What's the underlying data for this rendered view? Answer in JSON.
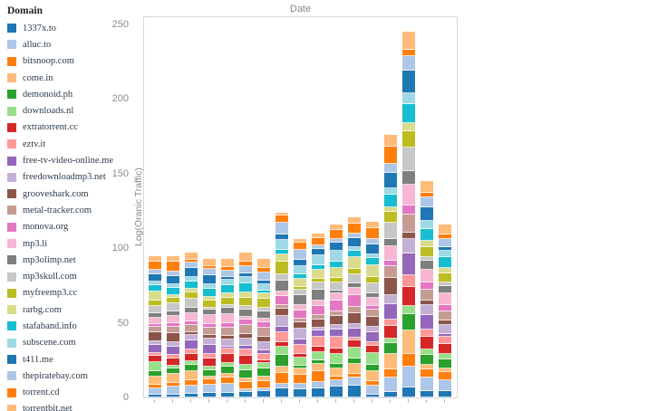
{
  "legend": {
    "title": "Domain",
    "items": [
      {
        "label": "1337x.to",
        "color": "#1f77b4"
      },
      {
        "label": "alluc.to",
        "color": "#aec7e8"
      },
      {
        "label": "bitsnoop.com",
        "color": "#ff7f0e"
      },
      {
        "label": "come.in",
        "color": "#ffbb78"
      },
      {
        "label": "demonoid.ph",
        "color": "#2ca02c"
      },
      {
        "label": "downloads.nl",
        "color": "#98df8a"
      },
      {
        "label": "extratorrent.cc",
        "color": "#d62728"
      },
      {
        "label": "eztv.it",
        "color": "#ff9896"
      },
      {
        "label": "free-tv-video-online.me",
        "color": "#9467bd"
      },
      {
        "label": "freedownloadmp3.net",
        "color": "#c5b0d5"
      },
      {
        "label": "grooveshark.com",
        "color": "#8c564b"
      },
      {
        "label": "metal-tracker.com",
        "color": "#c49c94"
      },
      {
        "label": "monova.org",
        "color": "#e377c2"
      },
      {
        "label": "mp3.li",
        "color": "#f7b6d2"
      },
      {
        "label": "mp3olimp.net",
        "color": "#7f7f7f"
      },
      {
        "label": "mp3skull.com",
        "color": "#c7c7c7"
      },
      {
        "label": "myfreemp3.cc",
        "color": "#bcbd22"
      },
      {
        "label": "rarbg.com",
        "color": "#dbdb8d"
      },
      {
        "label": "stafaband.info",
        "color": "#17becf"
      },
      {
        "label": "subscene.com",
        "color": "#9edae5"
      },
      {
        "label": "t411.me",
        "color": "#1f77b4"
      },
      {
        "label": "thepiratebay.com",
        "color": "#aec7e8"
      },
      {
        "label": "torrent.cd",
        "color": "#ff7f0e"
      },
      {
        "label": "torrentbit.net",
        "color": "#ffbb78"
      }
    ]
  },
  "chart_data": {
    "type": "bar",
    "variant": "stacked",
    "title": "Date",
    "xlabel": "",
    "ylabel": "Log(Oranic Traffic)",
    "yticks": [
      0,
      50,
      100,
      150,
      200,
      250
    ],
    "ylim": [
      0,
      256
    ],
    "x_tick_labels_visible": false,
    "categories": [
      "",
      "",
      "",
      "",
      "",
      "",
      "",
      "",
      "",
      "",
      "",
      "",
      "",
      "",
      "",
      "",
      ""
    ],
    "bar_totals": [
      95,
      95,
      97,
      93,
      93,
      97,
      93,
      124,
      106,
      110,
      116,
      121,
      118,
      176,
      245,
      145,
      116
    ],
    "stack_order_note": "Each bar is a stack of all 24 domains in legend order (bottom to top); individual segment values are not labeled in the image and are approximated as near-equal shares of the bar total.",
    "legend_position": "left",
    "grid": false
  }
}
